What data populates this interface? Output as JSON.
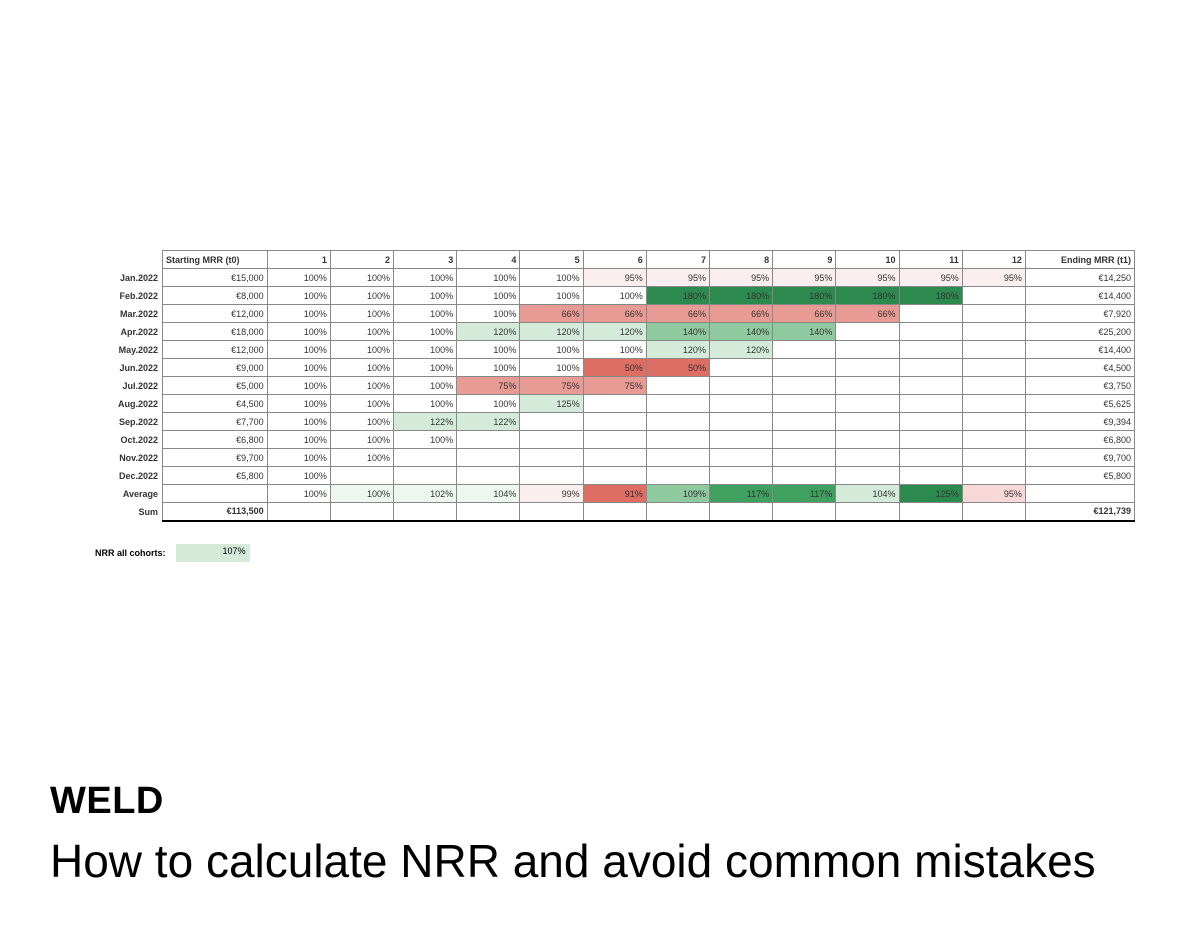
{
  "table": {
    "columns": [
      "Starting MRR (t0)",
      "1",
      "2",
      "3",
      "4",
      "5",
      "6",
      "7",
      "8",
      "9",
      "10",
      "11",
      "12",
      "Ending MRR (t1)"
    ],
    "rowLabels": [
      "Jan.2022",
      "Feb.2022",
      "Mar.2022",
      "Apr.2022",
      "May.2022",
      "Jun.2022",
      "Jul.2022",
      "Aug.2022",
      "Sep.2022",
      "Oct.2022",
      "Nov.2022",
      "Dec.2022",
      "Average",
      "Sum"
    ],
    "rows": [
      {
        "start": "€15,000",
        "m": [
          "100%",
          "100%",
          "100%",
          "100%",
          "100%",
          "95%",
          "95%",
          "95%",
          "95%",
          "95%",
          "95%",
          "95%"
        ],
        "end": "€14,250"
      },
      {
        "start": "€8,000",
        "m": [
          "100%",
          "100%",
          "100%",
          "100%",
          "100%",
          "100%",
          "180%",
          "180%",
          "180%",
          "180%",
          "180%",
          ""
        ],
        "end": "€14,400"
      },
      {
        "start": "€12,000",
        "m": [
          "100%",
          "100%",
          "100%",
          "100%",
          "66%",
          "66%",
          "66%",
          "66%",
          "66%",
          "66%",
          "",
          ""
        ],
        "end": "€7,920"
      },
      {
        "start": "€18,000",
        "m": [
          "100%",
          "100%",
          "100%",
          "120%",
          "120%",
          "120%",
          "140%",
          "140%",
          "140%",
          "",
          "",
          ""
        ],
        "end": "€25,200"
      },
      {
        "start": "€12,000",
        "m": [
          "100%",
          "100%",
          "100%",
          "100%",
          "100%",
          "100%",
          "120%",
          "120%",
          "",
          "",
          "",
          ""
        ],
        "end": "€14,400"
      },
      {
        "start": "€9,000",
        "m": [
          "100%",
          "100%",
          "100%",
          "100%",
          "100%",
          "50%",
          "50%",
          "",
          "",
          "",
          "",
          ""
        ],
        "end": "€4,500"
      },
      {
        "start": "€5,000",
        "m": [
          "100%",
          "100%",
          "100%",
          "75%",
          "75%",
          "75%",
          "",
          "",
          "",
          "",
          "",
          ""
        ],
        "end": "€3,750"
      },
      {
        "start": "€4,500",
        "m": [
          "100%",
          "100%",
          "100%",
          "100%",
          "125%",
          "",
          "",
          "",
          "",
          "",
          "",
          ""
        ],
        "end": "€5,625"
      },
      {
        "start": "€7,700",
        "m": [
          "100%",
          "100%",
          "122%",
          "122%",
          "",
          "",
          "",
          "",
          "",
          "",
          "",
          ""
        ],
        "end": "€9,394"
      },
      {
        "start": "€6,800",
        "m": [
          "100%",
          "100%",
          "100%",
          "",
          "",
          "",
          "",
          "",
          "",
          "",
          "",
          ""
        ],
        "end": "€6,800"
      },
      {
        "start": "€9,700",
        "m": [
          "100%",
          "100%",
          "",
          "",
          "",
          "",
          "",
          "",
          "",
          "",
          "",
          ""
        ],
        "end": "€9,700"
      },
      {
        "start": "€5,800",
        "m": [
          "100%",
          "",
          "",
          "",
          "",
          "",
          "",
          "",
          "",
          "",
          "",
          ""
        ],
        "end": "€5,800"
      },
      {
        "start": "",
        "m": [
          "100%",
          "100%",
          "102%",
          "104%",
          "99%",
          "91%",
          "109%",
          "117%",
          "117%",
          "104%",
          "125%",
          "95%"
        ],
        "end": ""
      },
      {
        "start": "€113,500",
        "m": [
          "",
          "",
          "",
          "",
          "",
          "",
          "",
          "",
          "",
          "",
          "",
          ""
        ],
        "end": "€121,739"
      }
    ],
    "colors": {
      "white": "#ffffff",
      "pink_vlight": "#fbeeee",
      "pink_light": "#f8d7d7",
      "red_mid": "#e89a94",
      "red_strong": "#de6e64",
      "green_vlight": "#eef6f0",
      "green_light": "#d4ebd9",
      "green_mid": "#8fc9a0",
      "green_strong": "#3fa060",
      "green_dark": "#2d8a4e"
    },
    "cellColorMap": [
      [
        "white",
        "white",
        "white",
        "white",
        "white",
        "pink_vlight",
        "pink_vlight",
        "pink_vlight",
        "pink_vlight",
        "pink_vlight",
        "pink_vlight",
        "pink_vlight"
      ],
      [
        "white",
        "white",
        "white",
        "white",
        "white",
        "white",
        "green_dark",
        "green_dark",
        "green_dark",
        "green_dark",
        "green_dark",
        ""
      ],
      [
        "white",
        "white",
        "white",
        "white",
        "red_mid",
        "red_mid",
        "red_mid",
        "red_mid",
        "red_mid",
        "red_mid",
        "",
        ""
      ],
      [
        "white",
        "white",
        "white",
        "green_light",
        "green_light",
        "green_light",
        "green_mid",
        "green_mid",
        "green_mid",
        "",
        "",
        ""
      ],
      [
        "white",
        "white",
        "white",
        "white",
        "white",
        "white",
        "green_light",
        "green_light",
        "",
        "",
        "",
        ""
      ],
      [
        "white",
        "white",
        "white",
        "white",
        "white",
        "red_strong",
        "red_strong",
        "",
        "",
        "",
        "",
        ""
      ],
      [
        "white",
        "white",
        "white",
        "red_mid",
        "red_mid",
        "red_mid",
        "",
        "",
        "",
        "",
        "",
        ""
      ],
      [
        "white",
        "white",
        "white",
        "white",
        "green_light",
        "",
        "",
        "",
        "",
        "",
        "",
        ""
      ],
      [
        "white",
        "white",
        "green_light",
        "green_light",
        "",
        "",
        "",
        "",
        "",
        "",
        "",
        ""
      ],
      [
        "white",
        "white",
        "white",
        "",
        "",
        "",
        "",
        "",
        "",
        "",
        "",
        ""
      ],
      [
        "white",
        "white",
        "",
        "",
        "",
        "",
        "",
        "",
        "",
        "",
        "",
        ""
      ],
      [
        "white",
        "",
        "",
        "",
        "",
        "",
        "",
        "",
        "",
        "",
        "",
        ""
      ],
      [
        "white",
        "green_vlight",
        "green_vlight",
        "green_vlight",
        "pink_vlight",
        "red_strong",
        "green_mid",
        "green_strong",
        "green_strong",
        "green_light",
        "green_dark",
        "pink_light"
      ],
      [
        "",
        "",
        "",
        "",
        "",
        "",
        "",
        "",
        "",
        "",
        "",
        ""
      ]
    ]
  },
  "nrr": {
    "label": "NRR all cohorts:",
    "value": "107%",
    "bg": "#d4ebd9"
  },
  "footer": {
    "brand": "WELD",
    "headline": "How to calculate NRR and avoid common mistakes"
  },
  "layout": {
    "col_rowlabel_w": 62,
    "col_start_w": 96,
    "col_month_w": 58,
    "col_end_w": 100,
    "border_color": "#888888",
    "font_size_table": 9,
    "font_size_brand": 38,
    "font_size_headline": 46
  }
}
